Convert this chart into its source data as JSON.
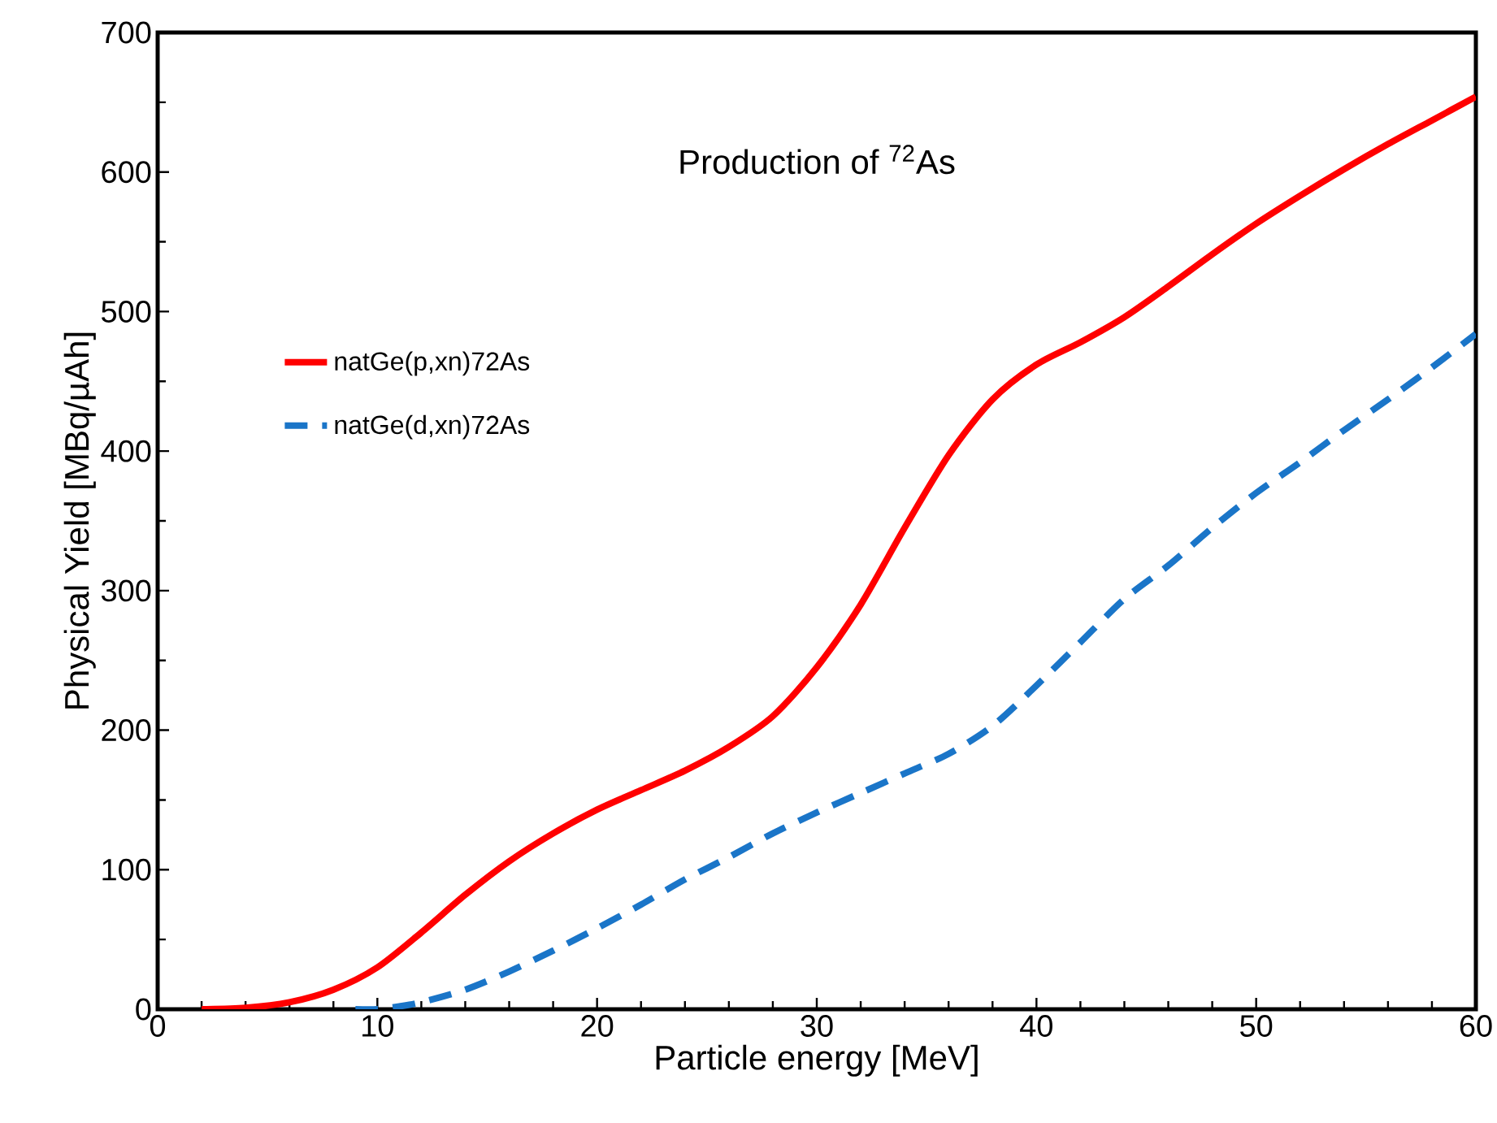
{
  "chart_data": {
    "type": "line",
    "title": "Production of $^{72}$As",
    "xlabel": "Particle energy [MeV]",
    "ylabel": "Physical Yield [MBq/µAh]",
    "xlim": [
      0,
      60
    ],
    "xticks": [
      0,
      10,
      20,
      30,
      40,
      50,
      60
    ],
    "ylim": [
      0,
      700
    ],
    "yticks": [
      0,
      100,
      200,
      300,
      400,
      500,
      600,
      700
    ],
    "legend": "left",
    "grid": false,
    "series": [
      {
        "name": "natGe(p,xn)72As",
        "color": "#ff0000",
        "line_style": "solid",
        "x": [
          2,
          4,
          6,
          8,
          10,
          12,
          14,
          16,
          18,
          20,
          22,
          24,
          26,
          28,
          30,
          32,
          34,
          36,
          38,
          40,
          42,
          44,
          46,
          48,
          50,
          52,
          54,
          56,
          58,
          60
        ],
        "values": [
          0,
          1,
          5,
          14,
          30,
          55,
          82,
          106,
          126,
          143,
          157,
          171,
          188,
          210,
          245,
          290,
          345,
          397,
          437,
          462,
          478,
          496,
          518,
          541,
          563,
          583,
          602,
          620,
          637,
          654
        ]
      },
      {
        "name": "natGe(d,xn)72As",
        "color": "#1a75c8",
        "line_style": "dashed",
        "x": [
          9,
          10,
          11,
          12,
          14,
          16,
          18,
          20,
          22,
          24,
          26,
          28,
          30,
          32,
          34,
          36,
          38,
          40,
          42,
          44,
          46,
          48,
          50,
          52,
          54,
          56,
          58,
          60
        ],
        "values": [
          0,
          0,
          2,
          5,
          14,
          27,
          42,
          58,
          75,
          93,
          109,
          126,
          141,
          155,
          169,
          183,
          203,
          232,
          263,
          294,
          318,
          345,
          370,
          392,
          415,
          437,
          460,
          484
        ]
      }
    ]
  }
}
